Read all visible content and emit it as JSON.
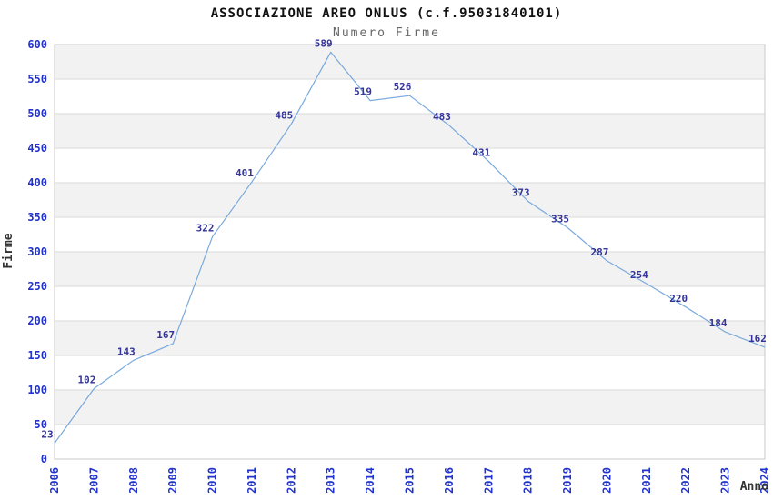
{
  "header": {
    "title": "ASSOCIAZIONE AREO ONLUS (c.f.95031840101)",
    "subtitle": "Numero Firme"
  },
  "chart_data": {
    "type": "line",
    "title": "ASSOCIAZIONE AREO ONLUS (c.f.95031840101)",
    "subtitle": "Numero Firme",
    "xlabel": "Anno",
    "ylabel": "Firme",
    "x": [
      2006,
      2007,
      2008,
      2009,
      2010,
      2011,
      2012,
      2013,
      2014,
      2015,
      2016,
      2017,
      2018,
      2019,
      2020,
      2021,
      2022,
      2023,
      2024
    ],
    "series": [
      {
        "name": "Numero Firme",
        "values": [
          23,
          102,
          143,
          167,
          322,
          401,
          485,
          589,
          519,
          526,
          483,
          431,
          373,
          335,
          287,
          254,
          220,
          184,
          162
        ]
      }
    ],
    "ylim": [
      0,
      600
    ],
    "ytick_step": 50,
    "grid": "horizontal gridlines every 50",
    "bands": "alternating gray/white horizontal bands",
    "legend": "none",
    "markers": "none",
    "colors": {
      "line": "#79a9dd",
      "tick_labels": "#2233cc",
      "data_labels": "#333399",
      "band_gray": "#f2f2f2",
      "band_white": "#ffffff",
      "gridline": "#d9d9d9",
      "plot_border": "#c9c9c9",
      "title": "#111111",
      "subtitle": "#666666",
      "axis_titles": "#333333",
      "background": "#ffffff"
    }
  }
}
